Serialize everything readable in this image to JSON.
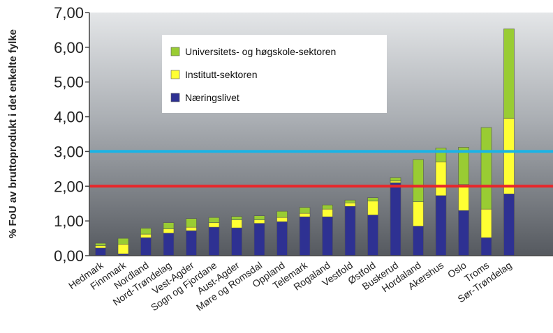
{
  "chart_data": {
    "type": "bar",
    "stacked": true,
    "ylabel": "% FoU av bruttoprodukt i det enkelte fylke",
    "ylim": [
      0,
      7
    ],
    "yticks": [
      "0,00",
      "1,00",
      "2,00",
      "3,00",
      "4,00",
      "5,00",
      "6,00",
      "7,00"
    ],
    "categories": [
      "Hedmark",
      "Finnmark",
      "Nordland",
      "Nord-Trøndelag",
      "Vest-Agder",
      "Sogn og Fjordane",
      "Aust-Agder",
      "Møre og Romsdal",
      "Oppland",
      "Telemark",
      "Rogaland",
      "Vestfold",
      "Østfold",
      "Buskerud",
      "Hordaland",
      "Akershus",
      "Oslo",
      "Troms",
      "Sør-Trøndelag"
    ],
    "series": [
      {
        "name": "Næringslivet",
        "color": "#2e3192",
        "values": [
          0.22,
          0.05,
          0.52,
          0.65,
          0.72,
          0.82,
          0.8,
          0.93,
          0.98,
          1.12,
          1.12,
          1.42,
          1.17,
          2.1,
          0.85,
          1.73,
          1.3,
          0.52,
          1.78
        ]
      },
      {
        "name": "Institutt-sektoren",
        "color": "#ffff33",
        "values": [
          0.07,
          0.28,
          0.1,
          0.12,
          0.1,
          0.13,
          0.23,
          0.1,
          0.12,
          0.1,
          0.22,
          0.1,
          0.4,
          0.05,
          0.7,
          0.97,
          0.75,
          0.82,
          2.17
        ]
      },
      {
        "name": "Universitets- og høgskole-sektoren",
        "color": "#99cc33",
        "values": [
          0.07,
          0.17,
          0.17,
          0.18,
          0.25,
          0.15,
          0.1,
          0.12,
          0.18,
          0.17,
          0.12,
          0.08,
          0.1,
          0.1,
          1.22,
          0.4,
          1.07,
          2.35,
          2.58
        ]
      }
    ],
    "reference_lines": [
      {
        "value": 3.0,
        "color": "#19b4e6"
      },
      {
        "value": 2.0,
        "color": "#e8262a"
      }
    ],
    "legend_order": [
      2,
      1,
      0
    ],
    "legend_position": "top-left inside plot",
    "grid": false,
    "background": "gradient grey"
  }
}
